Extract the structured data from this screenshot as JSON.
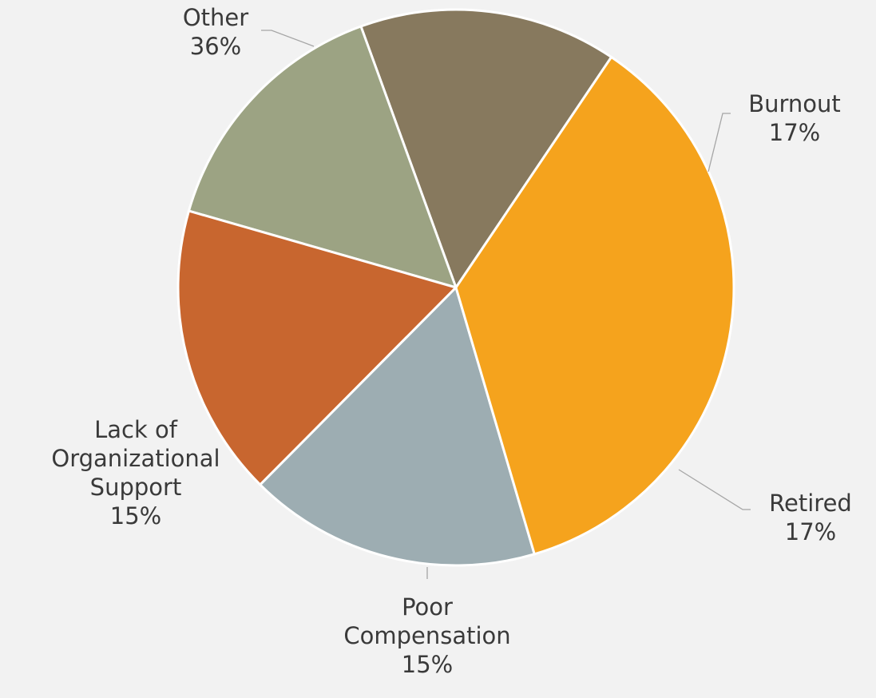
{
  "chart_data": {
    "type": "pie",
    "categories": [
      "Other",
      "Burnout",
      "Retired",
      "Poor Compensation",
      "Lack of Organizational Support"
    ],
    "values": [
      36,
      17,
      17,
      15,
      15
    ],
    "value_labels": [
      "36%",
      "17%",
      "17%",
      "15%",
      "15%"
    ],
    "colors": [
      "#f5a31d",
      "#9dadb2",
      "#c8662f",
      "#9ca383",
      "#87795e"
    ]
  }
}
